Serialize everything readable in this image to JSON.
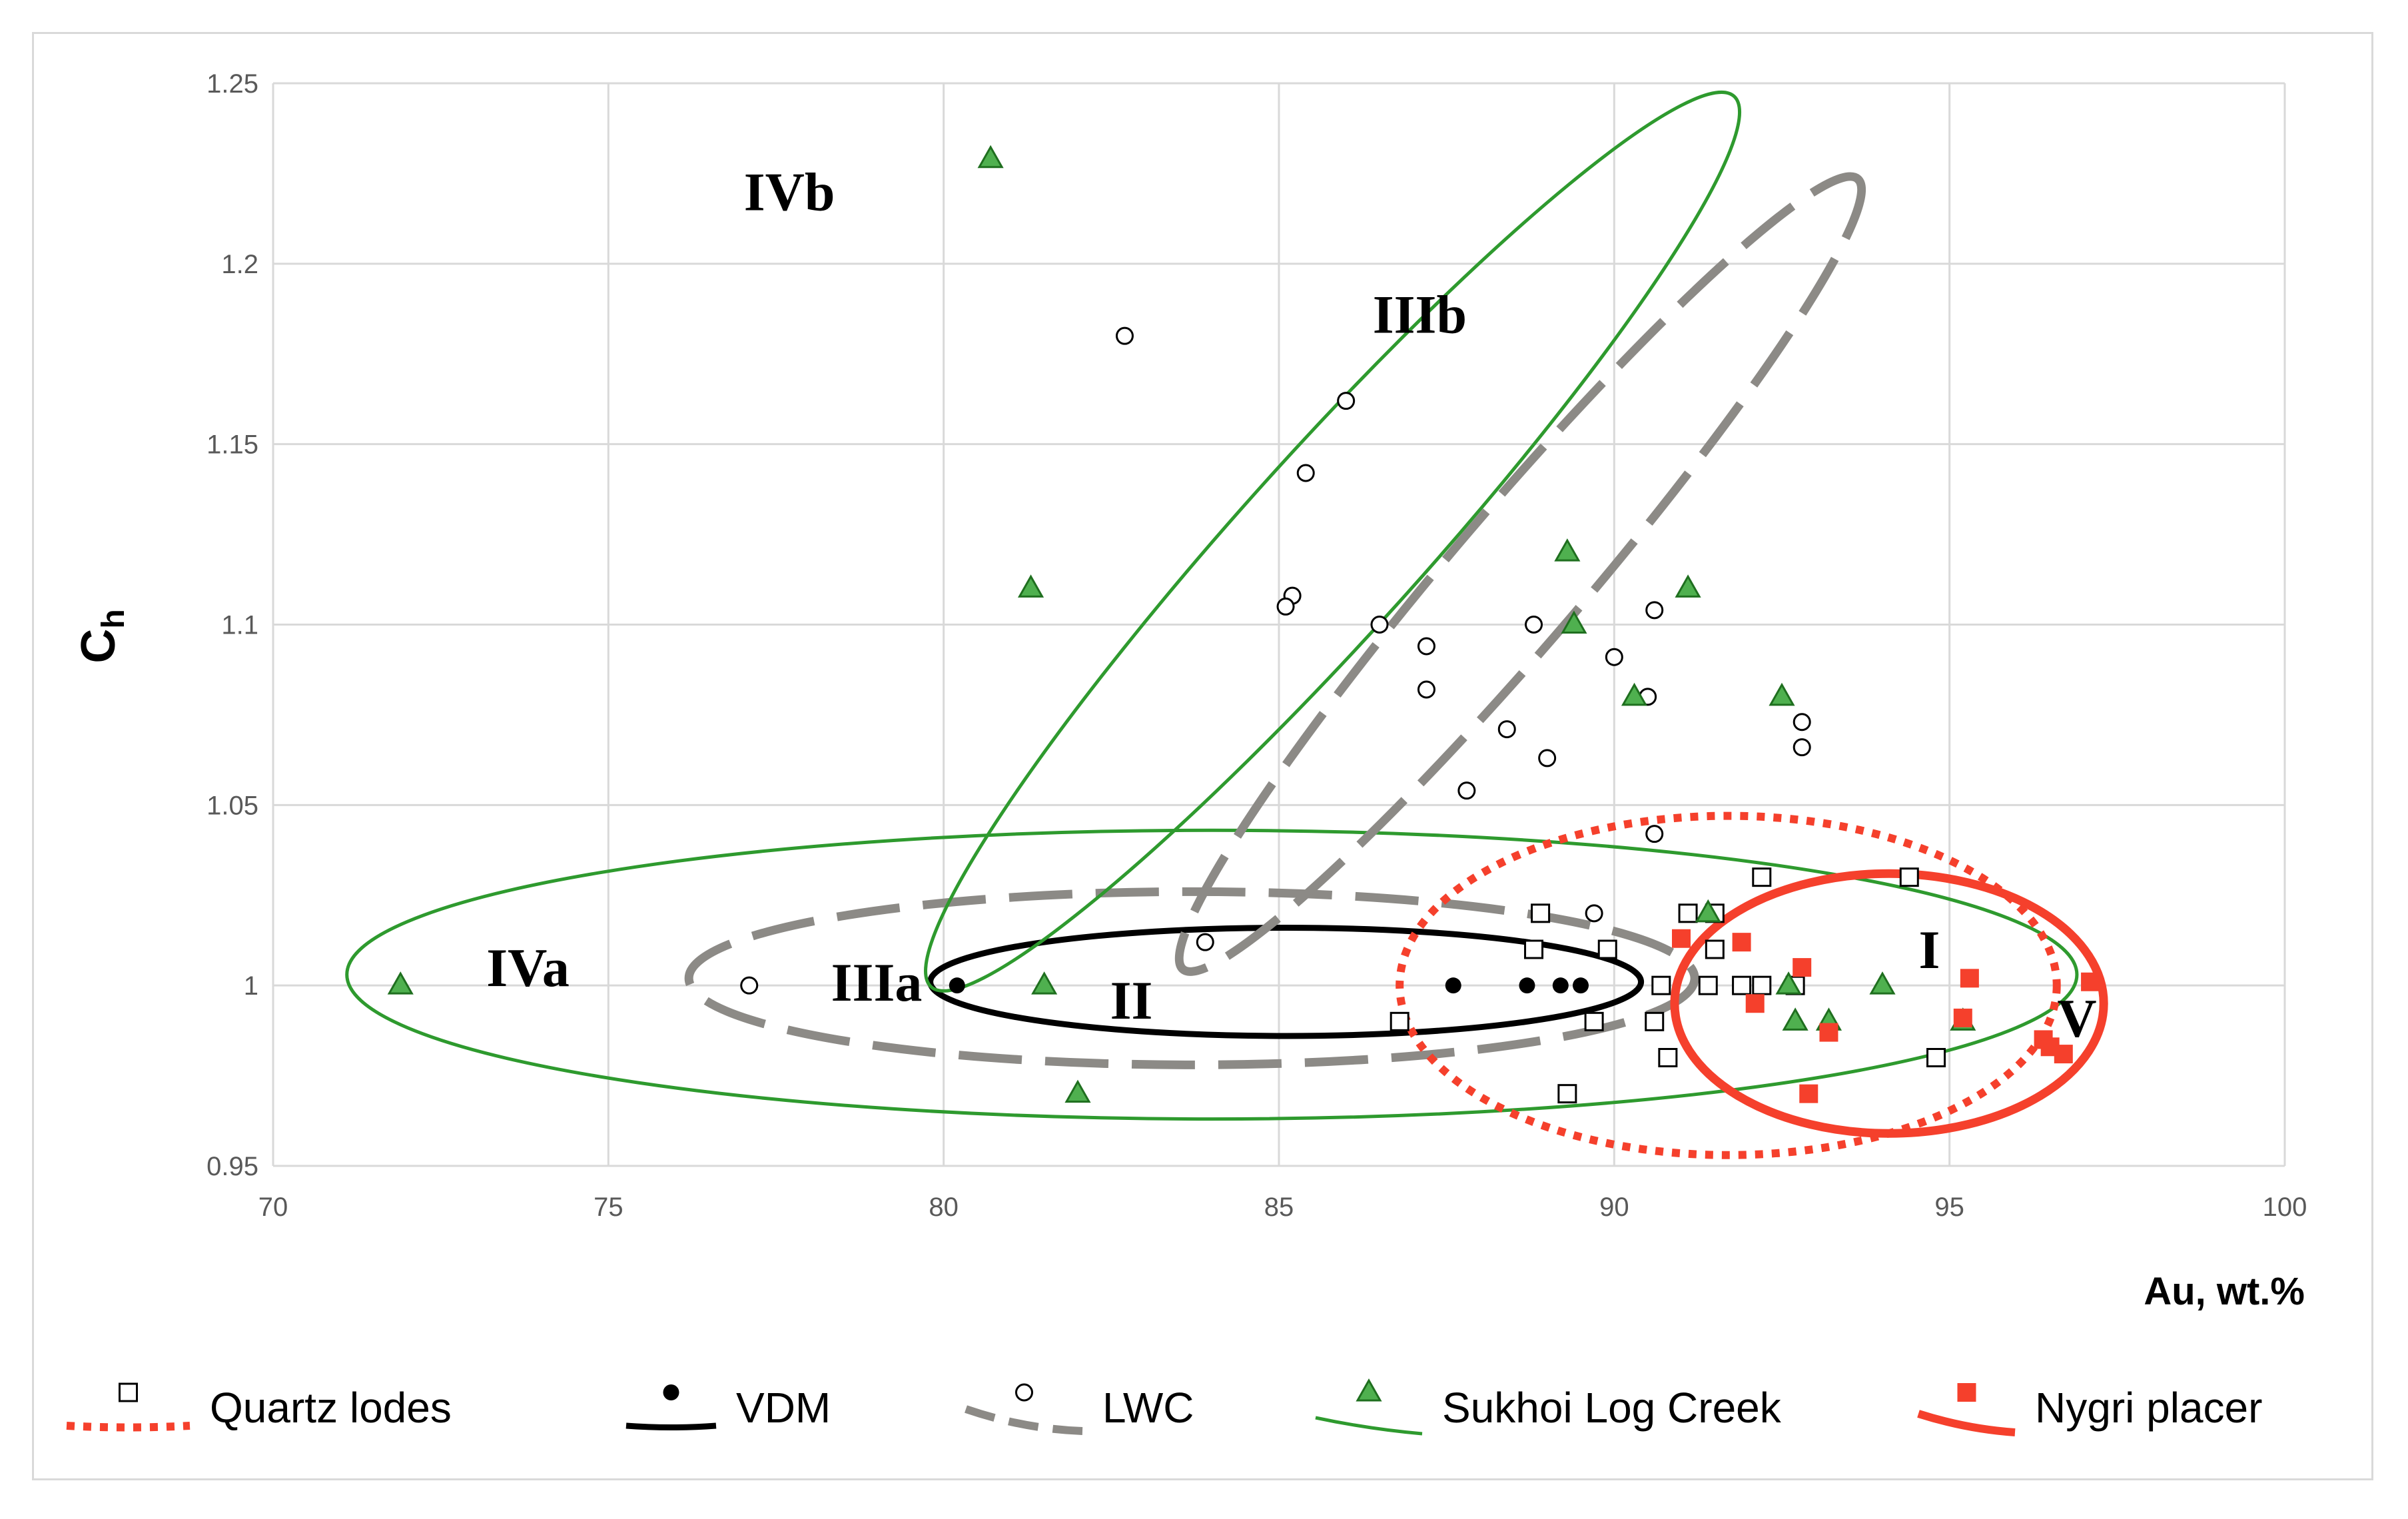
{
  "chart_data": {
    "type": "scatter",
    "xlabel": "Au, wt.%",
    "ylabel_main": "C",
    "ylabel_sub": "h",
    "xlim": [
      70,
      100
    ],
    "ylim": [
      0.95,
      1.25
    ],
    "xticks": [
      "70",
      "75",
      "80",
      "85",
      "90",
      "95",
      "100"
    ],
    "yticks": [
      "0.95",
      "1",
      "1.05",
      "1.1",
      "1.15",
      "1.2",
      "1.25"
    ],
    "grid": true,
    "colors": {
      "quartz": "#000000",
      "vdm": "#000000",
      "lwc": "#000000",
      "sukhoi": "#2e9a2e",
      "sukhoi_fill": "#4fb04f",
      "nygri": "#f5402c",
      "lwc_ellipse": "#8c8a86",
      "quartz_ellipse": "#f5402c"
    },
    "series": [
      {
        "name": "Quartz lodes",
        "marker": "open-square",
        "points": [
          [
            86.8,
            0.99
          ],
          [
            88.8,
            1.01
          ],
          [
            88.9,
            1.02
          ],
          [
            89.3,
            0.97
          ],
          [
            89.7,
            0.99
          ],
          [
            89.9,
            1.01
          ],
          [
            90.6,
            0.99
          ],
          [
            90.7,
            1.0
          ],
          [
            90.8,
            0.98
          ],
          [
            91.1,
            1.02
          ],
          [
            91.4,
            1.0
          ],
          [
            91.5,
            1.01
          ],
          [
            91.5,
            1.02
          ],
          [
            91.9,
            1.0
          ],
          [
            92.2,
            1.03
          ],
          [
            92.2,
            1.0
          ],
          [
            92.7,
            1.0
          ],
          [
            94.4,
            1.03
          ],
          [
            94.8,
            0.98
          ]
        ]
      },
      {
        "name": "VDM",
        "marker": "filled-circle",
        "points": [
          [
            80.2,
            1.0
          ],
          [
            87.6,
            1.0
          ],
          [
            88.7,
            1.0
          ],
          [
            89.2,
            1.0
          ],
          [
            89.5,
            1.0
          ]
        ]
      },
      {
        "name": "LWC",
        "marker": "open-circle",
        "points": [
          [
            82.7,
            1.18
          ],
          [
            86.0,
            1.162
          ],
          [
            85.4,
            1.142
          ],
          [
            85.2,
            1.108
          ],
          [
            85.1,
            1.105
          ],
          [
            86.5,
            1.1
          ],
          [
            87.2,
            1.094
          ],
          [
            87.2,
            1.082
          ],
          [
            88.4,
            1.071
          ],
          [
            87.8,
            1.054
          ],
          [
            89.0,
            1.063
          ],
          [
            88.8,
            1.1
          ],
          [
            90.0,
            1.091
          ],
          [
            90.6,
            1.104
          ],
          [
            90.5,
            1.08
          ],
          [
            90.6,
            1.042
          ],
          [
            92.8,
            1.073
          ],
          [
            92.8,
            1.066
          ],
          [
            83.9,
            1.012
          ],
          [
            77.1,
            1.0
          ],
          [
            89.7,
            1.02
          ]
        ]
      },
      {
        "name": "Sukhoi Log Creek",
        "marker": "filled-triangle",
        "points": [
          [
            80.7,
            1.229
          ],
          [
            81.3,
            1.11
          ],
          [
            89.3,
            1.12
          ],
          [
            89.4,
            1.1
          ],
          [
            91.1,
            1.11
          ],
          [
            90.3,
            1.08
          ],
          [
            92.5,
            1.08
          ],
          [
            71.9,
            1.0
          ],
          [
            81.5,
            1.0
          ],
          [
            82.0,
            0.97
          ],
          [
            91.4,
            1.02
          ],
          [
            92.6,
            1.0
          ],
          [
            92.7,
            0.99
          ],
          [
            93.2,
            0.99
          ],
          [
            94.0,
            1.0
          ],
          [
            95.2,
            0.99
          ]
        ]
      },
      {
        "name": "Nygri placer",
        "marker": "filled-square",
        "points": [
          [
            91.0,
            1.013
          ],
          [
            91.9,
            1.012
          ],
          [
            92.1,
            0.995
          ],
          [
            92.8,
            1.005
          ],
          [
            93.2,
            0.987
          ],
          [
            92.9,
            0.97
          ],
          [
            95.3,
            1.002
          ],
          [
            95.2,
            0.991
          ],
          [
            96.4,
            0.985
          ],
          [
            96.5,
            0.983
          ],
          [
            96.7,
            0.981
          ],
          [
            97.1,
            1.001
          ]
        ]
      }
    ],
    "regions": [
      {
        "label": "IVb",
        "x": 77.7,
        "y": 1.22
      },
      {
        "label": "IIIb",
        "x": 87.1,
        "y": 1.186
      },
      {
        "label": "IVa",
        "x": 73.8,
        "y": 1.005
      },
      {
        "label": "IIIa",
        "x": 79.0,
        "y": 1.001
      },
      {
        "label": "II",
        "x": 82.8,
        "y": 0.996
      },
      {
        "label": "I",
        "x": 94.7,
        "y": 1.01
      },
      {
        "label": "V",
        "x": 96.9,
        "y": 0.991
      }
    ],
    "ellipses": [
      {
        "group": "Sukhoi Log Creek",
        "style": "solid-thin",
        "cx": 84.0,
        "cy": 1.003,
        "rx": 12.9,
        "ry": 0.04,
        "angle": 0
      },
      {
        "group": "LWC",
        "style": "dashed",
        "cx": 83.7,
        "cy": 1.002,
        "rx": 7.5,
        "ry": 0.024,
        "angle": 0
      },
      {
        "group": "VDM",
        "style": "solid-thick",
        "cx": 85.1,
        "cy": 1.001,
        "rx": 5.3,
        "ry": 0.015,
        "angle": 0
      },
      {
        "group": "Quartz lodes",
        "style": "dotted",
        "cx": 91.7,
        "cy": 1.0,
        "rx": 4.9,
        "ry": 0.047,
        "angle": 0
      },
      {
        "group": "Nygri placer",
        "style": "solid-thick",
        "cx": 94.1,
        "cy": 0.995,
        "rx": 3.2,
        "ry": 0.036,
        "angle": 0
      },
      {
        "group": "Sukhoi Log Creek",
        "style": "solid-thin",
        "cx": 85.8,
        "cy": 1.123,
        "rx": 12.0,
        "ry": 0.05,
        "angle": -0.93
      },
      {
        "group": "LWC",
        "style": "dashed",
        "cx": 88.6,
        "cy": 1.114,
        "rx": 10.4,
        "ry": 0.037,
        "angle": -0.96
      }
    ],
    "legend": [
      {
        "label": "Quartz lodes",
        "line": "dotted",
        "marker": "open-square"
      },
      {
        "label": "VDM",
        "line": "solid-thick",
        "marker": "filled-circle"
      },
      {
        "label": "LWC",
        "line": "dashed",
        "marker": "open-circle"
      },
      {
        "label": "Sukhoi Log Creek",
        "line": "solid-thin",
        "marker": "filled-triangle"
      },
      {
        "label": "Nygri placer",
        "line": "solid-thick",
        "marker": "filled-square"
      }
    ]
  }
}
